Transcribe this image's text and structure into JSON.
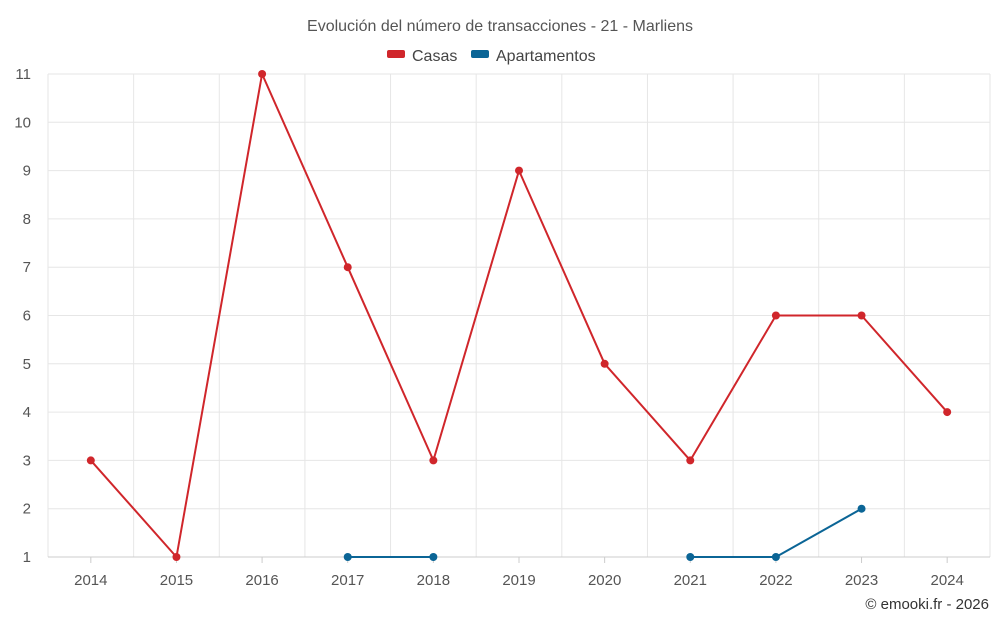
{
  "chart_data": {
    "type": "line",
    "title": "Evolución del número de transacciones - 21 - Marliens",
    "categories": [
      "2014",
      "2015",
      "2016",
      "2017",
      "2018",
      "2019",
      "2020",
      "2021",
      "2022",
      "2023",
      "2024"
    ],
    "series": [
      {
        "name": "Casas",
        "color": "#d0262b",
        "values": [
          3,
          1,
          11,
          7,
          3,
          9,
          5,
          3,
          6,
          6,
          4
        ]
      },
      {
        "name": "Apartamentos",
        "color": "#0b6596",
        "values": [
          null,
          null,
          null,
          1,
          1,
          null,
          null,
          1,
          1,
          2,
          null
        ]
      }
    ],
    "yticks": [
      "1",
      "2",
      "3",
      "4",
      "5",
      "6",
      "7",
      "8",
      "9",
      "10",
      "11"
    ],
    "ylim": [
      1,
      11
    ],
    "xlabel": "",
    "ylabel": "",
    "legend_position": "top-center",
    "grid": true
  },
  "credit": "© emooki.fr - 2026"
}
